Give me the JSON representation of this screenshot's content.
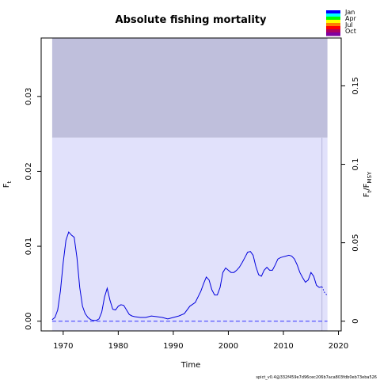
{
  "chart_data": {
    "type": "line",
    "title": "Absolute fishing mortality",
    "xlabel": "Time",
    "ylabel": "F",
    "ylabel_sub": "t",
    "ylabel_right_num": "F",
    "ylabel_right_num_sub": "t",
    "ylabel_right_sep": "/F",
    "ylabel_right_den_sub": "MSY",
    "xlim": [
      1966,
      2020.5
    ],
    "ylim": [
      -0.0013,
      0.0378
    ],
    "y2lim": [
      -0.0062,
      0.1805
    ],
    "x_ticks": [
      1970,
      1980,
      1990,
      2000,
      2010,
      2020
    ],
    "x_tick_labels": [
      "1970",
      "1980",
      "1990",
      "2000",
      "2010",
      "2020"
    ],
    "y_ticks": [
      0.0,
      0.01,
      0.02,
      0.03
    ],
    "y_tick_labels": [
      "0.00",
      "0.01",
      "0.02",
      "0.03"
    ],
    "y2_ticks": [
      0,
      0.05,
      0.1,
      0.15
    ],
    "y2_tick_labels": [
      "0",
      "0.05",
      "0.1",
      "0.15"
    ],
    "grid": false,
    "bands": {
      "x_range": [
        1968,
        2018
      ],
      "outer": {
        "y_range": [
          0.0245,
          0.0378
        ],
        "color": "#bfbfdc"
      },
      "inner": {
        "y_range": [
          -0.0013,
          0.0245
        ],
        "color": "#e1e1fb"
      }
    },
    "last_obs_line_x": 2017,
    "zero_line_y": 0.0,
    "series": [
      {
        "style": "solid",
        "color": "#0000dd",
        "x": [
          1968,
          1968.5,
          1969,
          1969.5,
          1970,
          1970.5,
          1971,
          1971.5,
          1972,
          1972.5,
          1973,
          1973.5,
          1974,
          1974.5,
          1975,
          1975.5,
          1976,
          1976.5,
          1977,
          1977.5,
          1978,
          1978.5,
          1979,
          1979.5,
          1980,
          1980.5,
          1981,
          1981.5,
          1982,
          1982.5,
          1983,
          1984,
          1985,
          1986,
          1987,
          1988,
          1989,
          1990,
          1991,
          1992,
          1993,
          1994,
          1995,
          1995.5,
          1996,
          1996.5,
          1997,
          1997.5,
          1998,
          1998.5,
          1999,
          1999.5,
          2000,
          2000.5,
          2001,
          2001.5,
          2002,
          2002.5,
          2003,
          2003.5,
          2004,
          2004.5,
          2005,
          2005.5,
          2006,
          2006.5,
          2007,
          2007.5,
          2008,
          2008.5,
          2009,
          2009.5,
          2010,
          2010.5,
          2011,
          2011.5,
          2012,
          2012.5,
          2013,
          2013.5,
          2014,
          2014.5,
          2015,
          2015.5,
          2016,
          2016.5,
          2017
        ],
        "y": [
          0.0002,
          0.0005,
          0.0015,
          0.004,
          0.0078,
          0.0108,
          0.0119,
          0.0115,
          0.0112,
          0.0085,
          0.0045,
          0.002,
          0.001,
          0.0005,
          0.0002,
          0.0001,
          0.0001,
          0.0003,
          0.0012,
          0.0032,
          0.0044,
          0.0028,
          0.0016,
          0.0015,
          0.002,
          0.0022,
          0.0021,
          0.0015,
          0.0009,
          0.0007,
          0.0006,
          0.0005,
          0.0005,
          0.0007,
          0.0006,
          0.0005,
          0.0003,
          0.0005,
          0.0007,
          0.001,
          0.002,
          0.0025,
          0.004,
          0.005,
          0.0059,
          0.0055,
          0.0042,
          0.0035,
          0.0035,
          0.0045,
          0.0065,
          0.0071,
          0.0068,
          0.0065,
          0.0065,
          0.0068,
          0.0072,
          0.0078,
          0.0085,
          0.0092,
          0.0093,
          0.0088,
          0.0073,
          0.0062,
          0.006,
          0.0068,
          0.0072,
          0.0068,
          0.0068,
          0.0075,
          0.0083,
          0.0085,
          0.0086,
          0.0087,
          0.0088,
          0.0087,
          0.0083,
          0.0075,
          0.0065,
          0.0058,
          0.0052,
          0.0055,
          0.0065,
          0.006,
          0.0048,
          0.0045,
          0.0046
        ]
      },
      {
        "style": "dotted",
        "color": "#0000dd",
        "x": [
          2017,
          2017.5,
          2018
        ],
        "y": [
          0.0046,
          0.0038,
          0.0034
        ]
      },
      {
        "style": "dashed",
        "color": "#3333ff",
        "x": [
          1968,
          2018
        ],
        "y": [
          0.0,
          0.0
        ]
      }
    ],
    "legend": {
      "position": "top-right",
      "labels": [
        "Jan",
        "Apr",
        "Jul",
        "Oct"
      ],
      "colors": [
        "#0000ff",
        "#00ffff",
        "#00ff00",
        "#ffff00",
        "#ff8000",
        "#ff0000",
        "#b00060",
        "#8000a0"
      ]
    },
    "footer": "spict_v0.4@332f459e7d96cec206b7aca803fdb0eb73eba526"
  }
}
